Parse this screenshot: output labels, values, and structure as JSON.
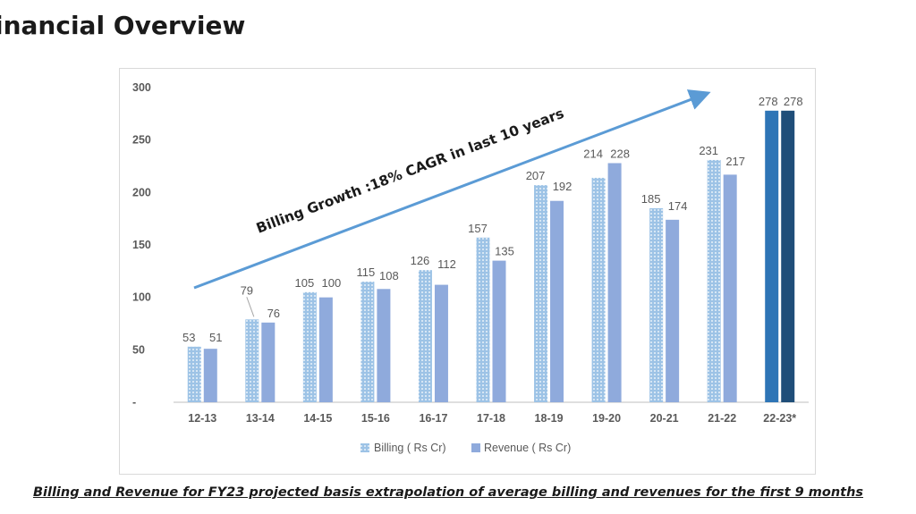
{
  "slide_title": "inancial Overview",
  "footnote": "Billing and Revenue for FY23 projected basis extrapolation of average billing and revenues for the first 9 months",
  "colors": {
    "billing": "#9dc3e6",
    "billing_dots": "#ffffff",
    "revenue": "#8faadc",
    "billing_highlight": "#2e75b6",
    "revenue_highlight": "#1f4e79",
    "arrow": "#5b9bd5",
    "axis": "#bfbfbf",
    "text": "#595959"
  },
  "chart_data": {
    "type": "bar",
    "title": "",
    "xlabel": "",
    "ylabel": "",
    "ylim": [
      0,
      300
    ],
    "yticks": [
      0,
      50,
      100,
      150,
      200,
      250,
      300
    ],
    "ytick_labels": [
      "-",
      "50",
      "100",
      "150",
      "200",
      "250",
      "300"
    ],
    "grid": false,
    "legend_position": "bottom",
    "categories": [
      "12-13",
      "13-14",
      "14-15",
      "15-16",
      "16-17",
      "17-18",
      "18-19",
      "19-20",
      "20-21",
      "21-22",
      "22-23*"
    ],
    "series": [
      {
        "name": "Billing ( Rs Cr)",
        "values": [
          53,
          79,
          105,
          115,
          126,
          157,
          207,
          214,
          185,
          231,
          278
        ]
      },
      {
        "name": "Revenue ( Rs Cr)",
        "values": [
          51,
          76,
          100,
          108,
          112,
          135,
          192,
          228,
          174,
          217,
          278
        ]
      }
    ],
    "data_labels": [
      [
        "53",
        "79",
        "105",
        "115",
        "126",
        "157",
        "207",
        "214",
        "185",
        "231",
        "278"
      ],
      [
        "51",
        "76",
        "100",
        "108",
        "112",
        "135",
        "192",
        "228",
        "174",
        "217",
        "278"
      ]
    ],
    "highlighted_category": "22-23*",
    "annotation": "Billing Growth :18% CAGR in last 10 years"
  }
}
